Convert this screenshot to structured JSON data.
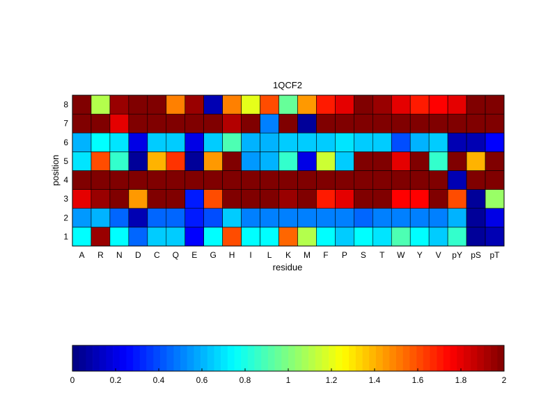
{
  "chart_data": {
    "type": "heatmap",
    "title": "1QCF2",
    "xlabel": "residue",
    "ylabel": "position",
    "x_categories": [
      "A",
      "R",
      "N",
      "D",
      "C",
      "Q",
      "E",
      "G",
      "H",
      "I",
      "L",
      "K",
      "M",
      "F",
      "P",
      "S",
      "T",
      "W",
      "Y",
      "V",
      "pY",
      "pS",
      "pT"
    ],
    "y_categories": [
      "1",
      "2",
      "3",
      "4",
      "5",
      "6",
      "7",
      "8"
    ],
    "values_by_position": {
      "1": [
        0.75,
        1.95,
        0.75,
        0.45,
        0.65,
        0.65,
        0.25,
        0.75,
        1.6,
        0.75,
        0.75,
        1.55,
        1.1,
        0.75,
        0.65,
        0.75,
        0.7,
        0.9,
        0.75,
        0.65,
        0.85,
        0.05,
        0.1
      ],
      "2": [
        0.55,
        0.6,
        0.45,
        0.1,
        0.45,
        0.45,
        0.3,
        0.4,
        0.65,
        0.5,
        0.5,
        0.5,
        0.5,
        0.5,
        0.5,
        0.45,
        0.5,
        0.5,
        0.5,
        0.5,
        0.6,
        0.05,
        0.2
      ],
      "3": [
        1.8,
        1.95,
        2.0,
        1.45,
        2.0,
        2.0,
        0.3,
        1.6,
        2.0,
        2.0,
        2.0,
        1.95,
        2.0,
        1.7,
        1.8,
        2.0,
        2.0,
        1.75,
        1.75,
        2.0,
        1.6,
        0.05,
        1.05
      ],
      "4": [
        2.0,
        2.0,
        2.0,
        2.0,
        2.0,
        2.0,
        2.0,
        2.0,
        2.0,
        2.0,
        2.0,
        2.0,
        2.0,
        2.0,
        2.0,
        2.0,
        2.0,
        2.0,
        2.0,
        2.0,
        0.1,
        2.0,
        2.0
      ],
      "5": [
        0.7,
        1.6,
        0.85,
        0.05,
        1.4,
        1.65,
        0.05,
        1.45,
        2.0,
        0.55,
        0.6,
        0.85,
        0.2,
        1.15,
        0.65,
        2.0,
        2.0,
        1.8,
        2.0,
        0.85,
        2.0,
        1.4,
        2.0
      ],
      "6": [
        0.6,
        0.75,
        0.7,
        0.2,
        0.65,
        0.65,
        0.2,
        0.65,
        0.9,
        0.6,
        0.6,
        0.65,
        0.65,
        0.65,
        0.7,
        0.65,
        0.65,
        0.4,
        0.6,
        0.65,
        0.1,
        0.1,
        0.25
      ],
      "7": [
        2.0,
        2.0,
        1.8,
        2.0,
        2.0,
        2.0,
        2.0,
        2.0,
        1.9,
        2.0,
        0.5,
        2.0,
        0.05,
        2.0,
        2.0,
        2.0,
        2.0,
        2.0,
        2.0,
        2.0,
        2.0,
        2.0,
        2.0
      ],
      "8": [
        2.0,
        1.1,
        1.95,
        2.0,
        2.0,
        1.5,
        1.95,
        0.1,
        1.5,
        1.2,
        1.6,
        0.95,
        1.45,
        1.7,
        1.8,
        2.0,
        1.95,
        1.8,
        1.7,
        1.75,
        1.8,
        2.0,
        2.0
      ]
    },
    "colorbar": {
      "range": [
        0,
        2
      ],
      "ticks": [
        "0",
        "0.2",
        "0.4",
        "0.6",
        "0.8",
        "1",
        "1.2",
        "1.4",
        "1.6",
        "1.8",
        "2"
      ],
      "colormap": "jet",
      "orientation": "horizontal",
      "placement": "bottom"
    },
    "grid": true,
    "colors": {
      "cell_border": "#000000",
      "axes": "#000000",
      "background": "#ffffff"
    }
  }
}
